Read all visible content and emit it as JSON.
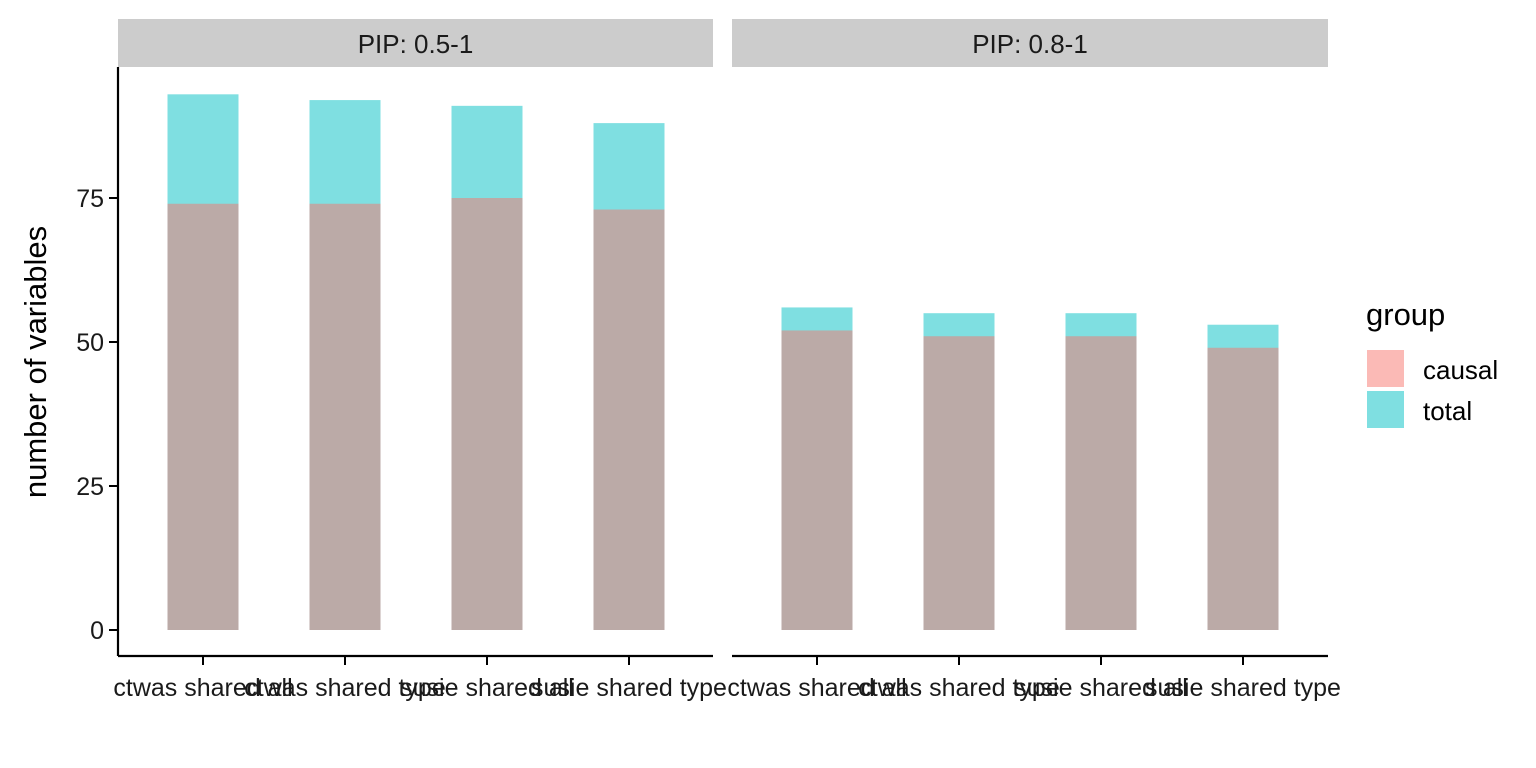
{
  "chart_data": {
    "type": "bar",
    "ylabel": "number of variables",
    "xlabel": "",
    "ylim": [
      0,
      95
    ],
    "yticks": [
      0,
      25,
      50,
      75
    ],
    "legend": {
      "title": "group",
      "position": "right",
      "items": [
        {
          "label": "causal",
          "color": "#F8766D"
        },
        {
          "label": "total",
          "color": "#00BFC4"
        }
      ]
    },
    "bar_alpha": 0.5,
    "grid": false,
    "categories": [
      "ctwas shared all",
      "ctwas shared type",
      "susie shared all",
      "susie shared type"
    ],
    "panels": [
      {
        "strip": "PIP: 0.5-1",
        "series": [
          {
            "name": "total",
            "values": [
              93,
              92,
              91,
              88
            ]
          },
          {
            "name": "causal",
            "values": [
              74,
              74,
              75,
              73
            ]
          }
        ]
      },
      {
        "strip": "PIP: 0.8-1",
        "series": [
          {
            "name": "total",
            "values": [
              56,
              55,
              55,
              53
            ]
          },
          {
            "name": "causal",
            "values": [
              52,
              51,
              51,
              49
            ]
          }
        ]
      }
    ]
  }
}
